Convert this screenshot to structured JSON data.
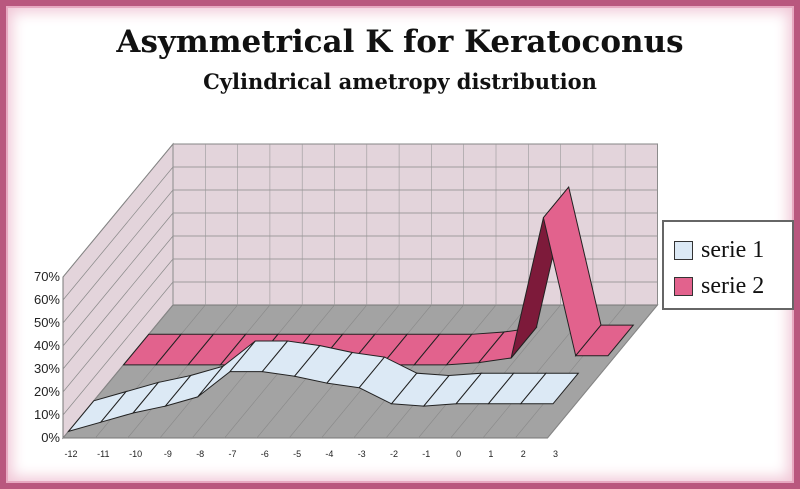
{
  "title": "Asymmetrical K for Keratoconus",
  "subtitle": "Cylindrical ametropy distribution",
  "chart_data": {
    "type": "area",
    "style": "3d-ribbon",
    "categories": [
      "-12",
      "-11",
      "-10",
      "-9",
      "-8",
      "-7",
      "-6",
      "-5",
      "-4",
      "-3",
      "-2",
      "-1",
      "0",
      "1",
      "2",
      "3"
    ],
    "yticks": [
      "0%",
      "10%",
      "20%",
      "30%",
      "40%",
      "50%",
      "60%",
      "70%"
    ],
    "ylim": [
      0,
      70
    ],
    "grid": true,
    "legend_position": "right",
    "series": [
      {
        "name": "serie 1",
        "color": "#dce9f5",
        "values": [
          0,
          4,
          8,
          11,
          15,
          26,
          26,
          24,
          21,
          19,
          12,
          11,
          12,
          12,
          12,
          12
        ]
      },
      {
        "name": "serie 2",
        "color": "#e2628d",
        "values": [
          0,
          0,
          0,
          0,
          0,
          0,
          0,
          0,
          0,
          0,
          0,
          1,
          3,
          64,
          4,
          4
        ]
      }
    ]
  },
  "colors": {
    "frame": "#b9577e",
    "wall": "#e3d4db",
    "floor": "#a3a3a3",
    "serie1_side": "#ffffff",
    "serie2_side": "#7d1a3a"
  }
}
